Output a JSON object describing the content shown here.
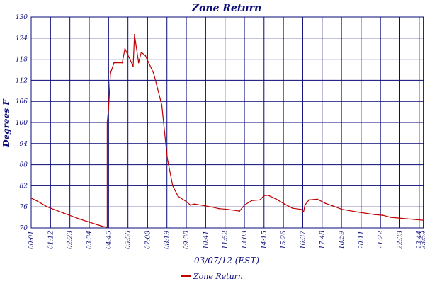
{
  "chart_data": {
    "type": "line",
    "title": "Zone Return",
    "xlabel": "03/07/12 (EST)",
    "ylabel": "Degrees F",
    "ylim": [
      70,
      130
    ],
    "yticks": [
      70,
      76,
      82,
      88,
      94,
      100,
      106,
      112,
      118,
      124,
      130
    ],
    "xlim_minutes": [
      1,
      1440
    ],
    "xtick_labels": [
      "00:01",
      "01:12",
      "02:23",
      "03:34",
      "04:45",
      "05:56",
      "07:08",
      "08:19",
      "09:30",
      "10:41",
      "11:52",
      "13:03",
      "14:15",
      "15:26",
      "16:37",
      "17:48",
      "18:59",
      "20:11",
      "21:22",
      "22:33",
      "23:44",
      "23:59"
    ],
    "grid": true,
    "legend_position": "bottom-center",
    "colors": {
      "series": "#c00000",
      "grid": "#0a0a78",
      "text": "#0a0a78"
    },
    "series": [
      {
        "name": "Zone Return",
        "x_time": [
          "00:01",
          "00:20",
          "01:00",
          "02:00",
          "03:00",
          "04:00",
          "04:25",
          "04:40",
          "04:40",
          "04:45",
          "04:52",
          "05:05",
          "05:35",
          "05:45",
          "06:15",
          "06:20",
          "06:35",
          "06:45",
          "07:00",
          "07:30",
          "08:00",
          "08:20",
          "08:40",
          "09:00",
          "09:30",
          "09:45",
          "10:00",
          "11:00",
          "11:30",
          "12:00",
          "12:45",
          "13:03",
          "13:30",
          "14:00",
          "14:15",
          "14:30",
          "15:00",
          "15:30",
          "16:00",
          "16:30",
          "16:40",
          "16:45",
          "17:00",
          "17:30",
          "18:00",
          "18:30",
          "19:00",
          "20:00",
          "21:00",
          "21:30",
          "22:00",
          "23:00",
          "23:59"
        ],
        "y": [
          78.5,
          77.8,
          76.0,
          74.2,
          72.5,
          71.0,
          70.4,
          70.2,
          100,
          104,
          114,
          117,
          117,
          121,
          116,
          125,
          117,
          120,
          119,
          114,
          105,
          90,
          82,
          79,
          77.5,
          76.5,
          76.8,
          76.0,
          75.5,
          75.3,
          74.8,
          76.5,
          77.8,
          78.0,
          79.2,
          79.3,
          78.2,
          76.8,
          75.6,
          75.3,
          74.6,
          76.5,
          78.0,
          78.2,
          77.0,
          76.2,
          75.3,
          74.5,
          73.8,
          73.6,
          73.0,
          72.6,
          72.2
        ]
      }
    ]
  }
}
